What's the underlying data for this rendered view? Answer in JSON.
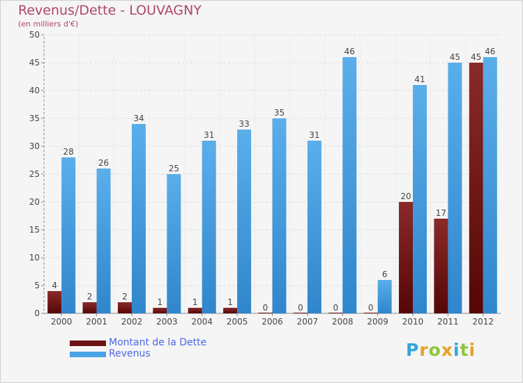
{
  "header": {
    "title": "Revenus/Dette - LOUVAGNY",
    "subtitle": "(en milliers d'€)"
  },
  "chart_data": {
    "type": "bar",
    "categories": [
      "2000",
      "2001",
      "2002",
      "2003",
      "2004",
      "2005",
      "2006",
      "2007",
      "2008",
      "2009",
      "2010",
      "2011",
      "2012"
    ],
    "series": [
      {
        "name": "Montant de la Dette",
        "color": "#6d1212",
        "values": [
          4,
          2,
          2,
          1,
          1,
          1,
          0,
          0,
          0,
          0,
          20,
          17,
          45
        ]
      },
      {
        "name": "Revenus",
        "color": "#4aa3e6",
        "values": [
          28,
          26,
          34,
          25,
          31,
          33,
          35,
          31,
          46,
          6,
          41,
          45,
          46
        ]
      }
    ],
    "y_ticks": [
      "0",
      "5",
      "10",
      "15",
      "20",
      "25",
      "30",
      "35",
      "40",
      "45",
      "50"
    ],
    "ylim": [
      0,
      50
    ],
    "grid": true,
    "legend_position": "bottom-left"
  },
  "legend": {
    "items": [
      {
        "label": "Montant de la Dette",
        "color": "#6d1212"
      },
      {
        "label": "Revenus",
        "color": "#4aa3e6"
      }
    ]
  },
  "logo": {
    "letters": [
      "P",
      "r",
      "o",
      "x",
      "i",
      "t",
      "i"
    ],
    "colors": [
      "#35a6d6",
      "#e8a224",
      "#8cc63e",
      "#e8a224",
      "#35a6d6",
      "#8cc63e",
      "#e8a224"
    ]
  }
}
